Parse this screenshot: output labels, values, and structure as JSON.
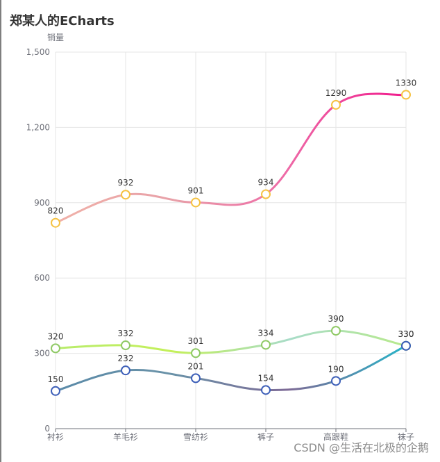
{
  "header": {
    "title": "郑某人的ECharts"
  },
  "watermark": "CSDN @生活在北极的企鹅",
  "colors": {
    "grid": "#e6e6e6",
    "axis": "#6e7079",
    "marker_orange": "#f5c242",
    "marker_green": "#8fc965",
    "marker_blue": "#3d5fb8"
  },
  "chart_data": {
    "type": "line",
    "smooth": true,
    "title": "郑某人的ECharts",
    "xlabel": "",
    "ylabel": "销量",
    "ylim": [
      0,
      1500
    ],
    "yticks": [
      0,
      300,
      600,
      900,
      1200,
      1500
    ],
    "ytick_labels": [
      "0",
      "300",
      "600",
      "900",
      "1,200",
      "1,500"
    ],
    "categories": [
      "衬衫",
      "羊毛衫",
      "雪纺衫",
      "裤子",
      "高跟鞋",
      "袜子"
    ],
    "grid": true,
    "legend": "none",
    "series": [
      {
        "values": [
          820,
          932,
          901,
          934,
          1290,
          1330
        ],
        "gradient": [
          "#f0b1a8",
          "#e8a0a8",
          "#ee68a6",
          "#f01a8c"
        ],
        "marker": "#f5c242"
      },
      {
        "values": [
          320,
          332,
          301,
          334,
          390,
          330
        ],
        "gradient": [
          "#b8ec6c",
          "#c4f05a",
          "#a8dcc8",
          "#b8ea8c"
        ],
        "marker": "#8fc965"
      },
      {
        "values": [
          150,
          232,
          201,
          154,
          190,
          330
        ],
        "gradient": [
          "#5a8aa8",
          "#6a92a8",
          "#7d6a96",
          "#28b4c8"
        ],
        "marker": "#3d5fb8"
      }
    ]
  }
}
